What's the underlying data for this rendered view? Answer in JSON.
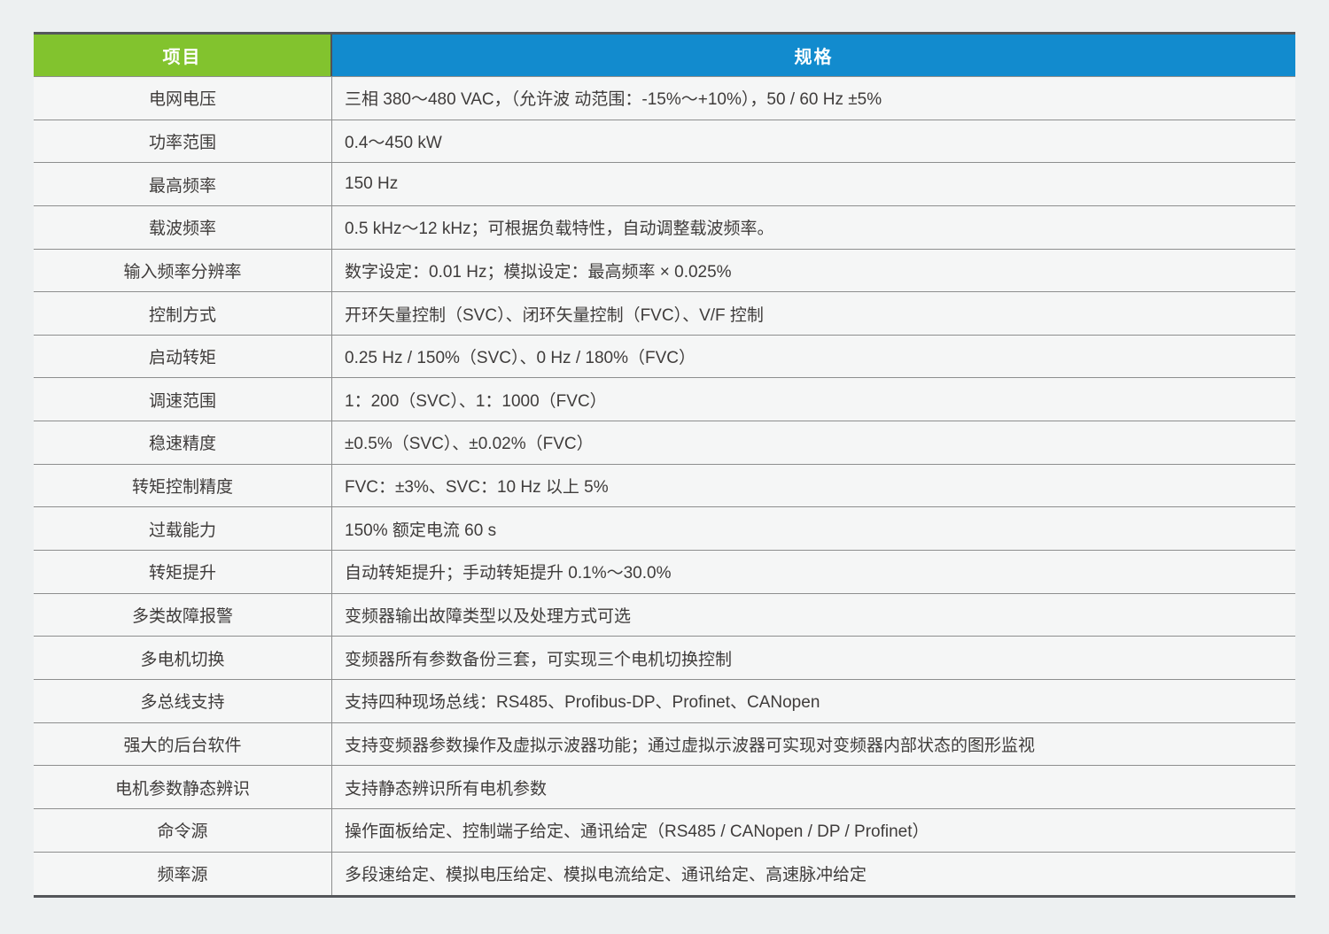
{
  "page": {
    "background_color": "#edf0f1"
  },
  "table": {
    "columns": [
      {
        "label": "项目"
      },
      {
        "label": "规格"
      }
    ],
    "header_colors": {
      "item_bg": "#82c32e",
      "spec_bg": "#128bce",
      "text": "#ffffff"
    },
    "border_colors": {
      "outer": "#54565a",
      "inner": "#8d8e8e"
    },
    "rows": [
      {
        "item": "电网电压",
        "spec": "三相 380～480 VAC，（允许波 动范围：-15%～+10%），50 / 60 Hz ±5%"
      },
      {
        "item": "功率范围",
        "spec": "0.4～450 kW"
      },
      {
        "item": "最高频率",
        "spec": "150 Hz"
      },
      {
        "item": "载波频率",
        "spec": "0.5 kHz～12 kHz；可根据负载特性，自动调整载波频率。"
      },
      {
        "item": "输入频率分辨率",
        "spec": "数字设定：0.01 Hz；模拟设定：最高频率 × 0.025%"
      },
      {
        "item": "控制方式",
        "spec": "开环矢量控制（SVC）、闭环矢量控制（FVC）、V/F 控制"
      },
      {
        "item": "启动转矩",
        "spec": "0.25 Hz / 150%（SVC）、0 Hz / 180%（FVC）"
      },
      {
        "item": "调速范围",
        "spec": "1：200（SVC）、1：1000（FVC）"
      },
      {
        "item": "稳速精度",
        "spec": "±0.5%（SVC）、±0.02%（FVC）"
      },
      {
        "item": "转矩控制精度",
        "spec": "FVC：±3%、SVC：10 Hz 以上 5%"
      },
      {
        "item": "过载能力",
        "spec": "150% 额定电流 60 s"
      },
      {
        "item": "转矩提升",
        "spec": "自动转矩提升；手动转矩提升 0.1%～30.0%"
      },
      {
        "item": "多类故障报警",
        "spec": "变频器输出故障类型以及处理方式可选"
      },
      {
        "item": "多电机切换",
        "spec": "变频器所有参数备份三套，可实现三个电机切换控制"
      },
      {
        "item": "多总线支持",
        "spec": "支持四种现场总线：RS485、Profibus-DP、Profinet、CANopen"
      },
      {
        "item": "强大的后台软件",
        "spec": "支持变频器参数操作及虚拟示波器功能；通过虚拟示波器可实现对变频器内部状态的图形监视"
      },
      {
        "item": "电机参数静态辨识",
        "spec": "支持静态辨识所有电机参数"
      },
      {
        "item": "命令源",
        "spec": "操作面板给定、控制端子给定、通讯给定（RS485 / CANopen / DP / Profinet）"
      },
      {
        "item": "频率源",
        "spec": "多段速给定、模拟电压给定、模拟电流给定、通讯给定、高速脉冲给定"
      }
    ]
  }
}
